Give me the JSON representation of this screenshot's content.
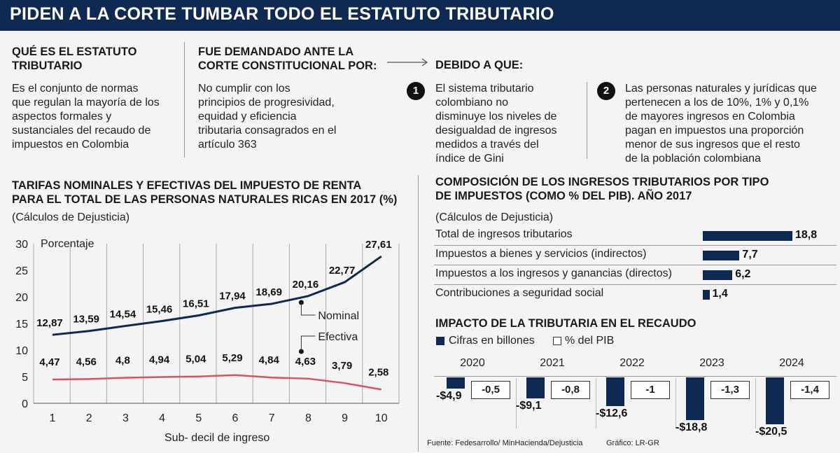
{
  "header": {
    "title": "PIDEN A LA CORTE TUMBAR TODO EL ESTATUTO TRIBUTARIO"
  },
  "intro": {
    "what_title_1": "QUÉ ES EL ESTATUTO",
    "what_title_2": "TRIBUTARIO",
    "what_body": [
      "Es el conjunto de normas",
      "que regulan la mayoría de los",
      "aspectos formales y",
      "sustanciales del recaudo de",
      "impuestos en Colombia"
    ],
    "demand_title_1": "FUE DEMANDADO ANTE LA",
    "demand_title_2": "CORTE CONSTITUCIONAL POR:",
    "demand_body": [
      "No cumplir con los",
      "principios de progresividad,",
      "equidad y eficiencia",
      "tributaria consagrados en el",
      "artículo 363"
    ],
    "because_title": "DEBIDO A QUE:",
    "reason1_num": "1",
    "reason1_body": [
      "El sistema tributario",
      "colombiano no",
      "disminuye los niveles de",
      "desigualdad de ingresos",
      "medidos a través del",
      "índice de Gini"
    ],
    "reason2_num": "2",
    "reason2_body": [
      "Las personas naturales y jurídicas que",
      "pertenecen a los de 10%, 1% y 0,1%",
      "de mayores ingresos en Colombia",
      "pagan en impuestos una proporción",
      "menor de sus ingresos que el resto",
      "de la población colombiana"
    ]
  },
  "line_chart": {
    "title_1": "TARIFAS NOMINALES Y EFECTIVAS DEL IMPUESTO DE RENTA",
    "title_2": "PARA EL TOTAL DE LAS PERSONAS NATURALES RICAS EN 2017 (%)",
    "source_note": "(Cálculos de Dejusticia)",
    "ylabel": "Porcentaje",
    "xlabel": "Sub- decil de ingreso",
    "nominal_label": "Nominal",
    "efectiva_label": "Efectiva"
  },
  "comp_chart": {
    "title_1": "COMPOSICIÓN DE LOS INGRESOS TRIBUTARIOS POR TIPO",
    "title_2": "DE IMPUESTOS (COMO % DEL PIB). AÑO 2017",
    "source_note": "(Cálculos de Dejusticia)"
  },
  "impact_chart": {
    "title": "IMPACTO DE LA TRIBUTARIA EN EL RECAUDO",
    "legend_billions": "Cifras en billones",
    "legend_pib": "% del PIB"
  },
  "footer": {
    "source": "Fuente: Fedesarrollo/ MinHacienda/Dejusticia",
    "credit": "Gráfico: LR-GR"
  },
  "colors": {
    "navy": "#0f2a52",
    "efectiva": "#d9535f",
    "background": "#f4f4f4"
  },
  "chart_data": [
    {
      "type": "line",
      "x": [
        1,
        2,
        3,
        4,
        5,
        6,
        7,
        8,
        9,
        10
      ],
      "ylim": [
        0,
        30
      ],
      "yticks": [
        0,
        5,
        10,
        15,
        20,
        25,
        30
      ],
      "series": [
        {
          "name": "Nominal",
          "values": [
            12.87,
            13.59,
            14.54,
            15.46,
            16.51,
            17.94,
            18.69,
            20.16,
            22.77,
            27.61
          ],
          "labels": [
            "12,87",
            "13,59",
            "14,54",
            "15,46",
            "16,51",
            "17,94",
            "18,69",
            "20,16",
            "22,77",
            "27,61"
          ]
        },
        {
          "name": "Efectiva",
          "values": [
            4.47,
            4.56,
            4.8,
            4.94,
            5.04,
            5.29,
            4.84,
            4.63,
            3.79,
            2.58
          ],
          "labels": [
            "4,47",
            "4,56",
            "4,8",
            "4,94",
            "5,04",
            "5,29",
            "4,84",
            "4,63",
            "3,79",
            "2,58"
          ]
        }
      ]
    },
    {
      "type": "bar",
      "orientation": "horizontal",
      "categories": [
        "Total de ingresos tributarios",
        "Impuestos a bienes y servicios (indirectos)",
        "Impuestos a los ingresos y ganancias (directos)",
        "Contribuciones a seguridad social"
      ],
      "values": [
        18.8,
        7.7,
        6.2,
        1.4
      ],
      "labels": [
        "18,8",
        "7,7",
        "6,2",
        "1,4"
      ]
    },
    {
      "type": "bar",
      "categories": [
        "2020",
        "2021",
        "2022",
        "2023",
        "2024"
      ],
      "series": [
        {
          "name": "Cifras en billones",
          "values": [
            -4.9,
            -9.1,
            -12.6,
            -18.8,
            -20.5
          ],
          "labels": [
            "-$4,9",
            "-$9,1",
            "-$12,6",
            "-$18,8",
            "-$20,5"
          ]
        },
        {
          "name": "% del PIB",
          "values": [
            -0.5,
            -0.8,
            -1,
            -1.3,
            -1.4
          ],
          "labels": [
            "-0,5",
            "-0,8",
            "-1",
            "-1,3",
            "-1,4"
          ]
        }
      ]
    }
  ]
}
